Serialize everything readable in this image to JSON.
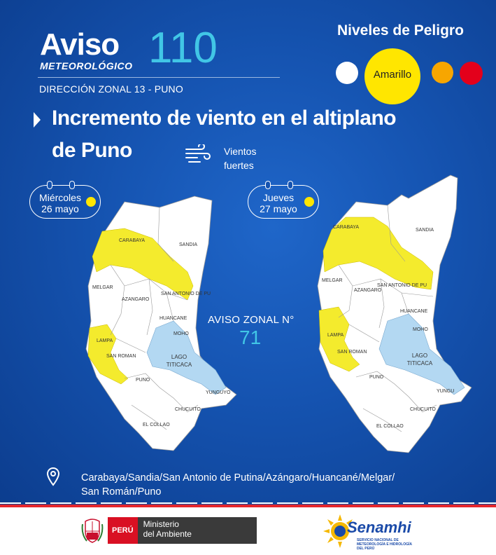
{
  "header": {
    "aviso_word": "Aviso",
    "meteo_word": "METEOROLÓGICO",
    "aviso_number": "110",
    "direccion": "DIRECCIÓN ZONAL 13 - PUNO"
  },
  "niveles": {
    "title": "Niveles de Peligro",
    "current_label": "Amarillo",
    "colors": {
      "white": "#ffffff",
      "yellow": "#ffe600",
      "orange": "#f7a600",
      "red": "#e3001b"
    }
  },
  "title": {
    "line1": "Incremento de viento en el altiplano",
    "line2": "de Puno"
  },
  "hazard": {
    "icon": "wind-icon",
    "label": "Vientos fuertes"
  },
  "days": [
    {
      "day": "Miércoles",
      "date": "26 mayo"
    },
    {
      "day": "Jueves",
      "date": "27 mayo"
    }
  ],
  "map_labels": {
    "carabaya": "CARABAYA",
    "sandia": "SANDIA",
    "melgar": "MELGAR",
    "san_antonio": "SAN ANTONIO DE PUTINA",
    "san_antonio_short": "SAN ANTONIO DE PU",
    "azangaro": "AZANGARO",
    "huancane": "HUANCANE",
    "moho": "MOHO",
    "lampa": "LAMPA",
    "san_roman": "SAN ROMAN",
    "lago1": "LAGO",
    "lago2": "TITICACA",
    "puno": "PUNO",
    "yunguyo": "YUNGUYO",
    "yunguyo_short": "YUNGU",
    "chucuito": "CHUCUITO",
    "el_collao": "EL COLLAO"
  },
  "zonal": {
    "label": "AVISO ZONAL N°",
    "number": "71"
  },
  "provinces": {
    "line1": "Carabaya/Sandia/San Antonio de Putina/Azángaro/Huancané/Melgar/",
    "line2": "San Román/Puno"
  },
  "footer": {
    "peru": "PERÚ",
    "ministerio_line1": "Ministerio",
    "ministerio_line2": "del Ambiente",
    "senamhi": "Senamhi",
    "senamhi_sub": "SERVICIO NACIONAL DE METEOROLOGÍA E HIDROLOGÍA DEL PERÚ"
  },
  "map_colors": {
    "region": "#ffffff",
    "alert": "#f4eb2d",
    "lake": "#b3d8f2",
    "border": "#999999"
  }
}
